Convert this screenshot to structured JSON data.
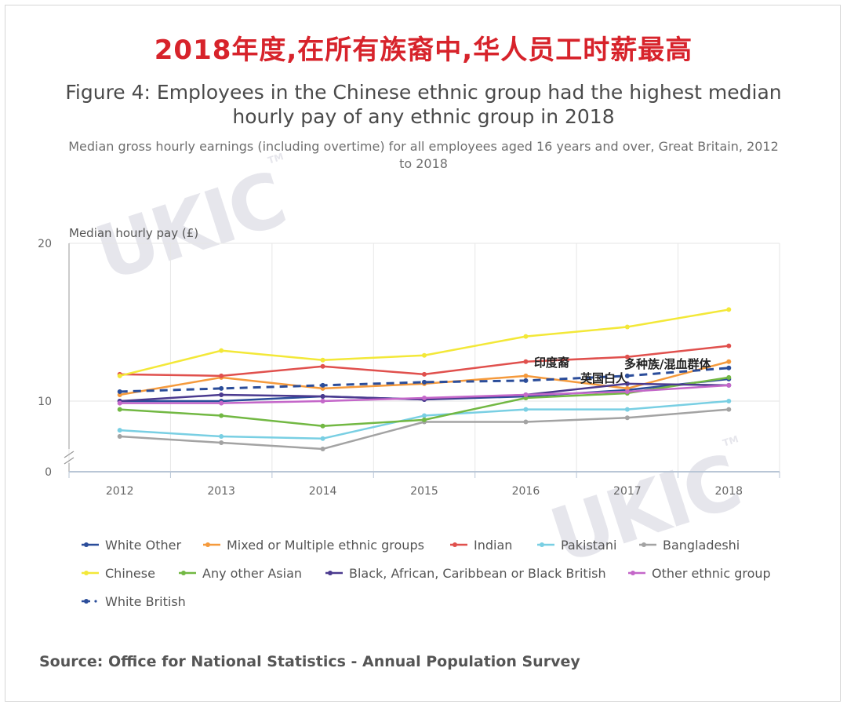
{
  "banner": "2018年度,在所有族裔中,华人员工时薪最高",
  "source": "Source: Office for National Statistics - Annual Population Survey",
  "annotations": {
    "indian": "印度裔",
    "mixed": "多种族/混血群体",
    "white_british": "英国白人"
  },
  "watermark": {
    "text": "UKIC",
    "tm": "TM"
  },
  "chart_data": {
    "type": "line",
    "title": "Figure 4: Employees in the Chinese ethnic group had the highest median hourly pay of any ethnic group in 2018",
    "subtitle": "Median gross hourly earnings (including overtime) for all employees aged 16 years and over, Great Britain, 2012 to 2018",
    "ylabel": "Median hourly pay (£)",
    "xlabel": "",
    "x": [
      "2012",
      "2013",
      "2014",
      "2015",
      "2016",
      "2017",
      "2018"
    ],
    "y_ticks": [
      "20",
      "10",
      "0"
    ],
    "ylim": [
      0,
      20
    ],
    "y_axis_break": true,
    "grid": "vertical",
    "legend_position": "bottom",
    "series": [
      {
        "name": "White Other",
        "color": "#2b4d9a",
        "dashed": false,
        "values": [
          10.0,
          10.0,
          10.3,
          10.1,
          10.3,
          10.7,
          11.4
        ]
      },
      {
        "name": "Mixed or Multiple ethnic groups",
        "color": "#f59a3c",
        "dashed": false,
        "values": [
          10.4,
          11.5,
          10.8,
          11.1,
          11.6,
          10.8,
          12.5
        ]
      },
      {
        "name": "Indian",
        "color": "#e0504d",
        "dashed": false,
        "values": [
          11.7,
          11.6,
          12.2,
          11.7,
          12.5,
          12.8,
          13.5
        ]
      },
      {
        "name": "Pakistani",
        "color": "#79cfe3",
        "dashed": false,
        "values": [
          8.6,
          8.3,
          8.2,
          9.3,
          9.6,
          9.6,
          10.0
        ]
      },
      {
        "name": "Bangladeshi",
        "color": "#a3a3a3",
        "dashed": false,
        "values": [
          8.3,
          8.0,
          7.7,
          9.0,
          9.0,
          9.2,
          9.6
        ]
      },
      {
        "name": "Chinese",
        "color": "#f3e838",
        "dashed": false,
        "values": [
          11.6,
          13.2,
          12.6,
          12.9,
          14.1,
          14.7,
          15.8
        ]
      },
      {
        "name": "Any other Asian",
        "color": "#72b843",
        "dashed": false,
        "values": [
          9.6,
          9.3,
          8.8,
          9.1,
          10.2,
          10.5,
          11.5
        ]
      },
      {
        "name": "Black, African, Caribbean or Black British",
        "color": "#4b3a8f",
        "dashed": false,
        "values": [
          10.0,
          10.4,
          10.3,
          10.1,
          10.4,
          11.1,
          11.0
        ]
      },
      {
        "name": "Other ethnic group",
        "color": "#c467c9",
        "dashed": false,
        "values": [
          9.9,
          9.9,
          10.0,
          10.2,
          10.4,
          10.6,
          11.0
        ]
      },
      {
        "name": "White British",
        "color": "#2b4d9a",
        "dashed": true,
        "values": [
          10.6,
          10.8,
          11.0,
          11.2,
          11.3,
          11.6,
          12.1
        ]
      }
    ]
  }
}
